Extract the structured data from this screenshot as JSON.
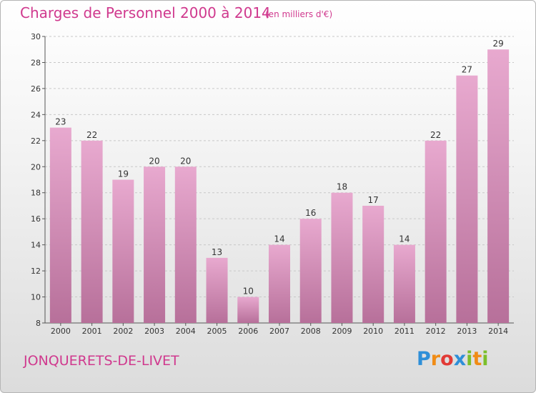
{
  "header": {
    "title": "Charges de Personnel 2000 à 2014",
    "subtitle": "(en milliers d'€)"
  },
  "footer": {
    "commune": "JONQUERETS-DE-LIVET",
    "logo": "Proxiti"
  },
  "colors": {
    "accent": "#d0398e",
    "bar_top": "#e8a9cf",
    "bar_bottom": "#b7709a"
  },
  "chart_data": {
    "type": "bar",
    "title": "Charges de Personnel 2000 à 2014",
    "subtitle": "(en milliers d'€)",
    "categories": [
      "2000",
      "2001",
      "2002",
      "2003",
      "2004",
      "2005",
      "2006",
      "2007",
      "2008",
      "2009",
      "2010",
      "2011",
      "2012",
      "2013",
      "2014"
    ],
    "values": [
      23,
      22,
      19,
      20,
      20,
      13,
      10,
      14,
      16,
      18,
      17,
      14,
      22,
      27,
      29
    ],
    "ylim": [
      8,
      30
    ],
    "yticks": [
      8,
      10,
      12,
      14,
      16,
      18,
      20,
      22,
      24,
      26,
      28,
      30
    ],
    "grid": true,
    "xlabel": "",
    "ylabel": ""
  }
}
